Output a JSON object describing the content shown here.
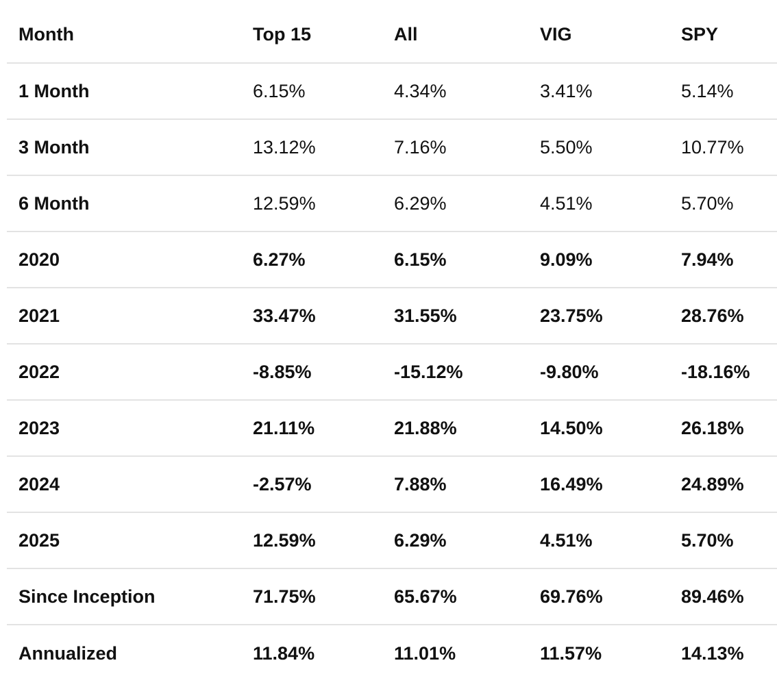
{
  "table": {
    "headers": [
      "Month",
      "Top 15",
      "All",
      "VIG",
      "SPY"
    ],
    "rows": [
      {
        "label": "1 Month",
        "values": [
          "6.15%",
          "4.34%",
          "3.41%",
          "5.14%"
        ],
        "bold": false
      },
      {
        "label": "3 Month",
        "values": [
          "13.12%",
          "7.16%",
          "5.50%",
          "10.77%"
        ],
        "bold": false
      },
      {
        "label": "6 Month",
        "values": [
          "12.59%",
          "6.29%",
          "4.51%",
          "5.70%"
        ],
        "bold": false
      },
      {
        "label": "2020",
        "values": [
          "6.27%",
          "6.15%",
          "9.09%",
          "7.94%"
        ],
        "bold": true
      },
      {
        "label": "2021",
        "values": [
          "33.47%",
          "31.55%",
          "23.75%",
          "28.76%"
        ],
        "bold": true
      },
      {
        "label": "2022",
        "values": [
          "-8.85%",
          "-15.12%",
          "-9.80%",
          "-18.16%"
        ],
        "bold": true
      },
      {
        "label": "2023",
        "values": [
          "21.11%",
          "21.88%",
          "14.50%",
          "26.18%"
        ],
        "bold": true
      },
      {
        "label": "2024",
        "values": [
          "-2.57%",
          "7.88%",
          "16.49%",
          "24.89%"
        ],
        "bold": true
      },
      {
        "label": "2025",
        "values": [
          "12.59%",
          "6.29%",
          "4.51%",
          "5.70%"
        ],
        "bold": true
      },
      {
        "label": "Since Inception",
        "values": [
          "71.75%",
          "65.67%",
          "69.76%",
          "89.46%"
        ],
        "bold": true
      },
      {
        "label": "Annualized",
        "values": [
          "11.84%",
          "11.01%",
          "11.57%",
          "14.13%"
        ],
        "bold": true
      }
    ]
  }
}
